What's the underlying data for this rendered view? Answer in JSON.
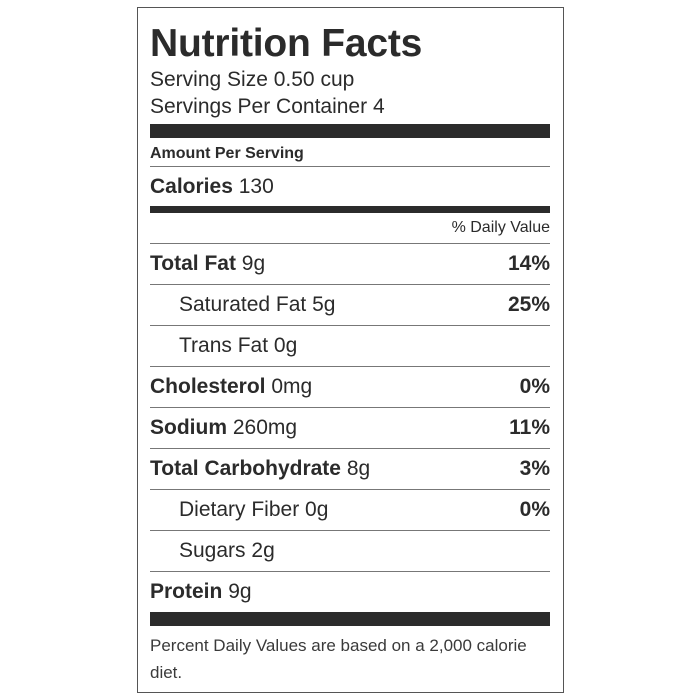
{
  "label": {
    "title": "Nutrition Facts",
    "serving_size_label": "Serving Size",
    "serving_size_value": "0.50 cup",
    "servings_per_container_label": "Servings Per Container",
    "servings_per_container_value": "4",
    "amount_per_serving": "Amount Per Serving",
    "calories_label": "Calories",
    "calories_value": "130",
    "daily_value_header": "% Daily Value",
    "rows": [
      {
        "name": "Total Fat",
        "amount": "9g",
        "percent": "14%"
      },
      {
        "name": "Saturated Fat",
        "amount": "5g",
        "percent": "25%"
      },
      {
        "name": "Trans Fat",
        "amount": "0g",
        "percent": ""
      },
      {
        "name": "Cholesterol",
        "amount": "0mg",
        "percent": "0%"
      },
      {
        "name": "Sodium",
        "amount": "260mg",
        "percent": "11%"
      },
      {
        "name": "Total Carbohydrate",
        "amount": "8g",
        "percent": "3%"
      },
      {
        "name": "Dietary Fiber",
        "amount": "0g",
        "percent": "0%"
      },
      {
        "name": "Sugars",
        "amount": "2g",
        "percent": ""
      },
      {
        "name": "Protein",
        "amount": "9g",
        "percent": ""
      }
    ],
    "footnote": "Percent Daily Values are based on a 2,000 calorie diet."
  },
  "colors": {
    "text": "#2b2b2b",
    "bars": "#2b2b2b",
    "border": "#555555",
    "background": "#ffffff"
  }
}
